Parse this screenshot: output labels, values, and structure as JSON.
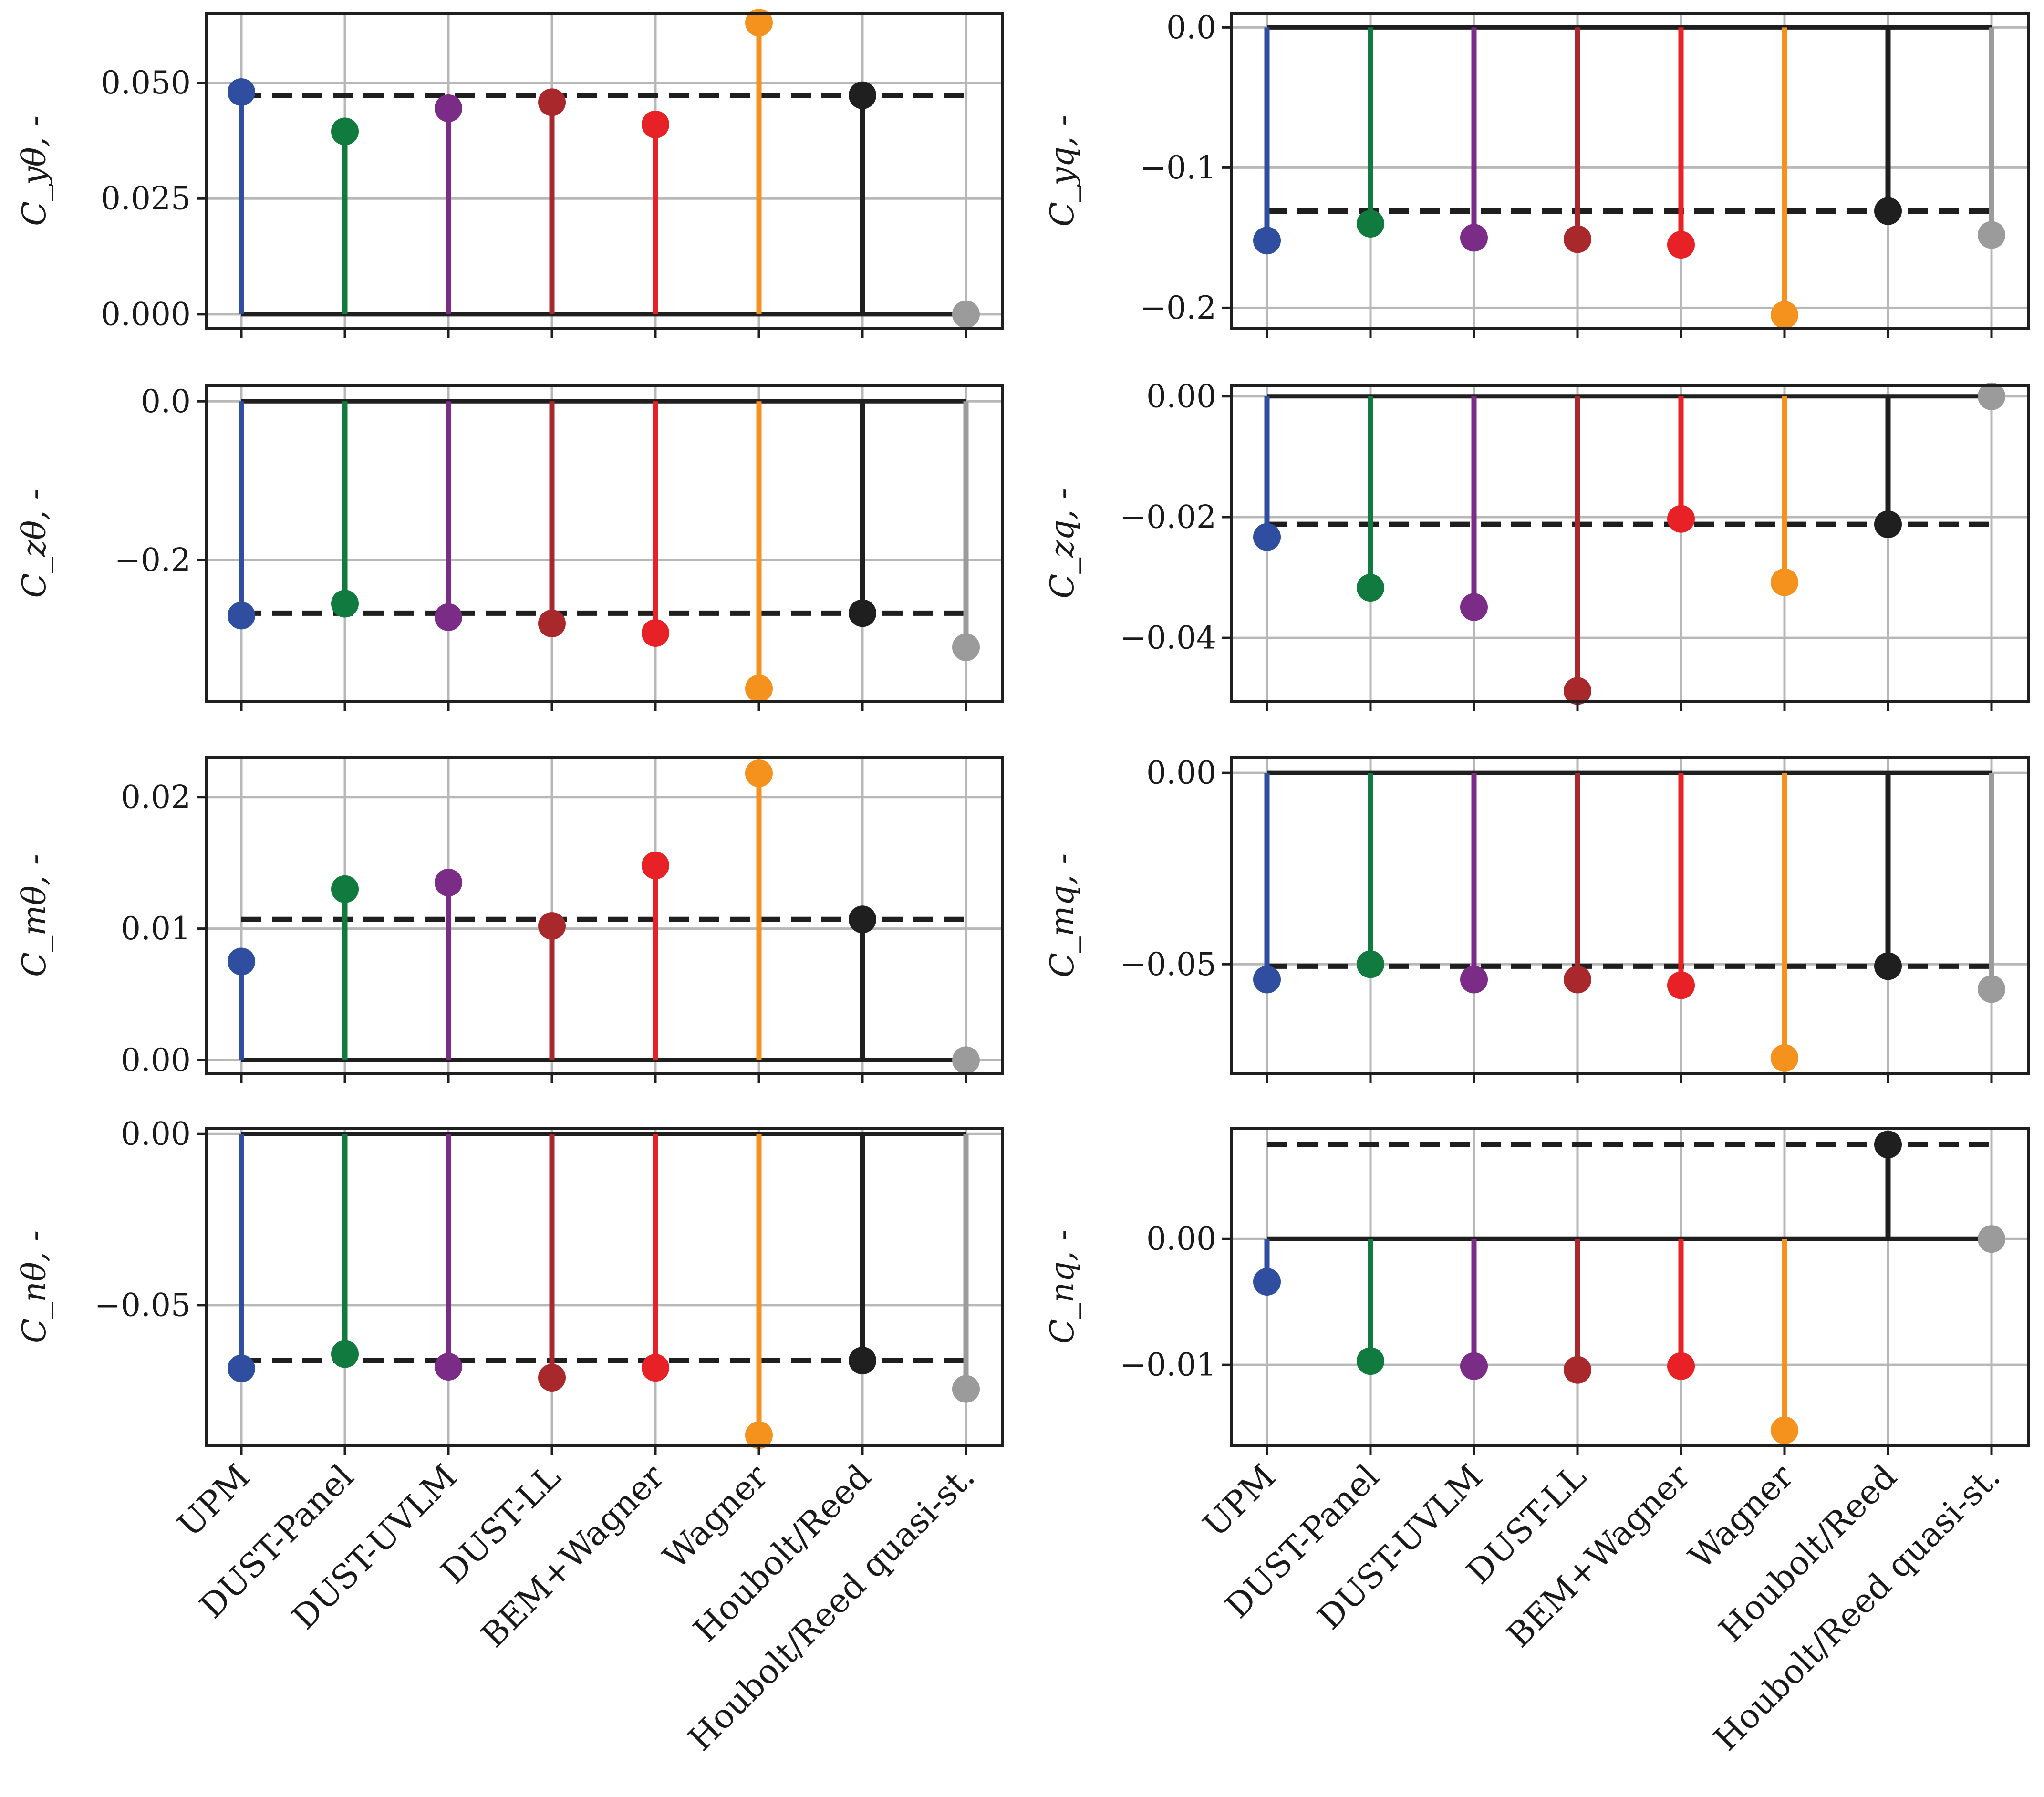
{
  "chart_data": {
    "type": "stem",
    "layout": "4 rows x 2 columns",
    "categories": [
      "UPM",
      "DUST-Panel",
      "DUST-UVLM",
      "DUST-LL",
      "BEM+Wagner",
      "Wagner",
      "Houbolt/Reed",
      "Houbolt/Reed quasi-st."
    ],
    "colors": [
      "#2f4ea0",
      "#117a3e",
      "#7b2c86",
      "#a9282c",
      "#e82127",
      "#f5921e",
      "#1f1f1f",
      "#9b9b9c"
    ],
    "reference_line": "dashed line at the Houbolt/Reed value",
    "panels": [
      {
        "ylabel": "C_yθ, -",
        "sub": "yθ",
        "ylim": [
          -0.003,
          0.065
        ],
        "ticks": [
          0.0,
          0.025,
          0.05
        ],
        "tick_labels": [
          "0.000",
          "0.025",
          "0.050"
        ],
        "values": [
          0.048,
          0.0395,
          0.0445,
          0.0458,
          0.041,
          0.063,
          0.0473,
          0.0
        ]
      },
      {
        "ylabel": "C_yq, -",
        "sub": "yq",
        "ylim": [
          -0.2145,
          0.01
        ],
        "ticks": [
          0.0,
          -0.1,
          -0.2
        ],
        "tick_labels": [
          "0.0",
          "−0.1",
          "−0.2"
        ],
        "values": [
          -0.152,
          -0.14,
          -0.15,
          -0.151,
          -0.155,
          -0.205,
          -0.131,
          -0.148
        ]
      },
      {
        "ylabel": "C_zθ, -",
        "sub": "zθ",
        "ylim": [
          -0.378,
          0.02
        ],
        "ticks": [
          0.0,
          -0.2
        ],
        "tick_labels": [
          "0.0",
          "−0.2"
        ],
        "values": [
          -0.27,
          -0.255,
          -0.272,
          -0.28,
          -0.292,
          -0.362,
          -0.267,
          -0.31
        ]
      },
      {
        "ylabel": "C_zq, -",
        "sub": "zq",
        "ylim": [
          -0.0505,
          0.0018
        ],
        "ticks": [
          0.0,
          -0.02,
          -0.04
        ],
        "tick_labels": [
          "0.00",
          "−0.02",
          "−0.04"
        ],
        "values": [
          -0.0233,
          -0.0317,
          -0.0349,
          -0.0488,
          -0.0203,
          -0.0308,
          -0.0212,
          0.0
        ]
      },
      {
        "ylabel": "C_mθ, -",
        "sub": "mθ",
        "ylim": [
          -0.001,
          0.023
        ],
        "ticks": [
          0.0,
          0.01,
          0.02
        ],
        "tick_labels": [
          "0.00",
          "0.01",
          "0.02"
        ],
        "values": [
          0.0075,
          0.013,
          0.0135,
          0.0102,
          0.0148,
          0.0218,
          0.0107,
          0.0
        ]
      },
      {
        "ylabel": "C_mq, -",
        "sub": "mq",
        "ylim": [
          -0.0785,
          0.004
        ],
        "ticks": [
          0.0,
          -0.05
        ],
        "tick_labels": [
          "0.00",
          "−0.05"
        ],
        "values": [
          -0.054,
          -0.05,
          -0.054,
          -0.054,
          -0.0555,
          -0.0745,
          -0.0505,
          -0.0565
        ]
      },
      {
        "ylabel": "C_nθ, -",
        "sub": "nθ",
        "ylim": [
          -0.091,
          0.0017
        ],
        "ticks": [
          0.0,
          -0.05
        ],
        "tick_labels": [
          "0.00",
          "−0.05"
        ],
        "values": [
          -0.0685,
          -0.0643,
          -0.068,
          -0.0712,
          -0.0683,
          -0.088,
          -0.0662,
          -0.0745
        ]
      },
      {
        "ylabel": "C_nq, -",
        "sub": "nq",
        "ylim": [
          -0.0164,
          0.0088
        ],
        "ticks": [
          0.0,
          -0.01
        ],
        "tick_labels": [
          "0.00",
          "−0.01"
        ],
        "values": [
          -0.0034,
          -0.0097,
          -0.0101,
          -0.0104,
          -0.0101,
          -0.0152,
          0.0075,
          0.0
        ]
      }
    ]
  }
}
